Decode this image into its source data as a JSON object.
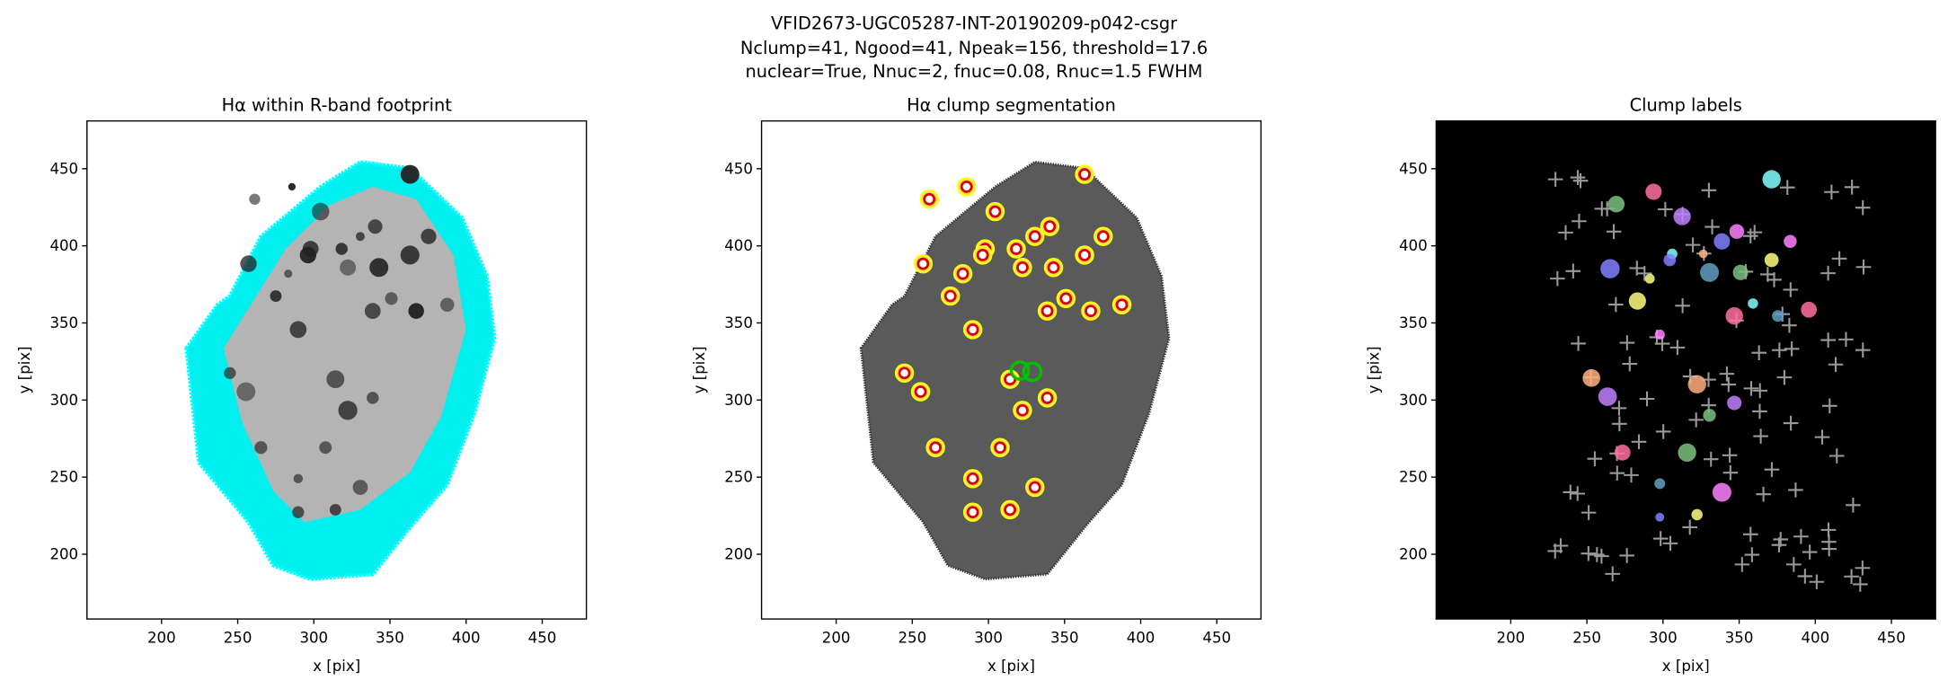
{
  "figure": {
    "title_lines": [
      "VFID2673-UGC05287-INT-20190209-p042-csgr",
      "Nclump=41, Ngood=41, Npeak=156, threshold=17.6",
      "nuclear=True, Nnuc=2, fnuc=0.08, Rnuc=1.5 FWHM"
    ]
  },
  "chart_data": [
    {
      "type": "image",
      "title": "Hα within R-band footprint",
      "xlabel": "x [pix]",
      "ylabel": "y [pix]",
      "xlim": [
        151,
        479
      ],
      "ylim": [
        158,
        481
      ],
      "xticks": [
        200,
        250,
        300,
        350,
        400,
        450
      ],
      "yticks": [
        200,
        250,
        300,
        350,
        400,
        450
      ]
    },
    {
      "type": "image",
      "title": "Hα clump segmentation",
      "xlabel": "x [pix]",
      "ylabel": "y [pix]",
      "xlim": [
        151,
        479
      ],
      "ylim": [
        158,
        481
      ],
      "xticks": [
        200,
        250,
        300,
        350,
        400,
        450
      ],
      "yticks": [
        200,
        250,
        300,
        350,
        400,
        450
      ]
    },
    {
      "type": "image",
      "title": "Clump labels",
      "xlabel": "x [pix]",
      "ylabel": "y [pix]",
      "xlim": [
        151,
        479
      ],
      "ylim": [
        158,
        481
      ],
      "xticks": [
        200,
        250,
        300,
        350,
        400,
        450
      ],
      "yticks": [
        200,
        250,
        300,
        350,
        400,
        450
      ]
    }
  ]
}
